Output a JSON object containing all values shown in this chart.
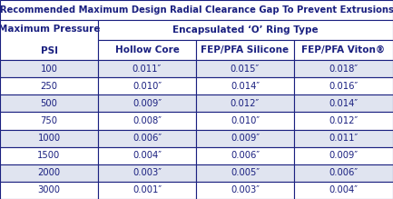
{
  "title": "Recommended Maximum Design Radial Clearance Gap To Prevent Extrusions",
  "rows": [
    [
      "100",
      "0.011″",
      "0.015″",
      "0.018″"
    ],
    [
      "250",
      "0.010″",
      "0.014″",
      "0.016″"
    ],
    [
      "500",
      "0.009″",
      "0.012″",
      "0.014″"
    ],
    [
      "750",
      "0.008″",
      "0.010″",
      "0.012″"
    ],
    [
      "1000",
      "0.006″",
      "0.009″",
      "0.011″"
    ],
    [
      "1500",
      "0.004″",
      "0.006″",
      "0.009″"
    ],
    [
      "2000",
      "0.003″",
      "0.005″",
      "0.006″"
    ],
    [
      "3000",
      "0.001″",
      "0.003″",
      "0.004″"
    ]
  ],
  "bg_title": "#ffffff",
  "bg_header": "#ffffff",
  "bg_row_odd": "#e0e4f0",
  "bg_row_even": "#ffffff",
  "text_color": "#1a2080",
  "border_color": "#1a2080",
  "title_fontsize": 7.2,
  "header_fontsize": 7.5,
  "data_fontsize": 7.2,
  "figsize": [
    4.33,
    2.19
  ],
  "dpi": 100
}
